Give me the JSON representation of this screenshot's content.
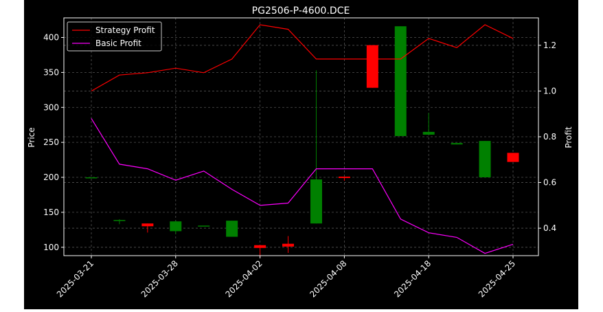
{
  "chart_data": {
    "type": "candlestick+line",
    "title": "PG2506-P-4600.DCE",
    "xlabel": "",
    "ylabel_left": "Price",
    "ylabel_right": "Profit",
    "ylim_left": [
      88,
      428
    ],
    "ylim_right": [
      0.28,
      1.32
    ],
    "yticks_left": [
      "100",
      "150",
      "200",
      "250",
      "300",
      "350",
      "400"
    ],
    "yticks_right": [
      "0.4",
      "0.6",
      "0.8",
      "1.0",
      "1.2"
    ],
    "xticks": [
      "2025-03-21",
      "2025-03-28",
      "2025-04-02",
      "2025-04-08",
      "2025-04-18",
      "2025-04-25"
    ],
    "grid": true,
    "legend_position": "upper-left",
    "colors": {
      "background": "#000000",
      "up": "#008000",
      "down": "#ff0000",
      "strategy": "#ff0000",
      "basic": "#ff00ff",
      "grid": "#555555",
      "axis": "#ffffff"
    },
    "candles": [
      {
        "open": 200,
        "close": 200,
        "high": 200,
        "low": 200
      },
      {
        "open": 138,
        "close": 139,
        "high": 140,
        "low": 133
      },
      {
        "open": 134,
        "close": 130,
        "high": 134,
        "low": 121
      },
      {
        "open": 123,
        "close": 137,
        "high": 138,
        "low": 119
      },
      {
        "open": 131,
        "close": 131,
        "high": 131,
        "low": 131
      },
      {
        "open": 115,
        "close": 138,
        "high": 138,
        "low": 115
      },
      {
        "open": 103,
        "close": 99,
        "high": 103,
        "low": 85
      },
      {
        "open": 105,
        "close": 101,
        "high": 116,
        "low": 92
      },
      {
        "open": 134,
        "close": 197,
        "high": 353,
        "low": 134
      },
      {
        "open": 201,
        "close": 199,
        "high": 201,
        "low": 195
      },
      {
        "open": 389,
        "close": 328,
        "high": 389,
        "low": 328
      },
      {
        "open": 259,
        "close": 416,
        "high": 416,
        "low": 259
      },
      {
        "open": 261,
        "close": 265,
        "high": 292,
        "low": 261
      },
      {
        "open": 247,
        "close": 249,
        "high": 249,
        "low": 247
      },
      {
        "open": 200,
        "close": 252,
        "high": 252,
        "low": 200
      },
      {
        "open": 235,
        "close": 222,
        "high": 235,
        "low": 222
      }
    ],
    "series": [
      {
        "name": "Strategy Profit",
        "axis": "right",
        "values": [
          1.0,
          1.07,
          1.08,
          1.1,
          1.08,
          1.14,
          1.29,
          1.27,
          1.14,
          1.14,
          1.14,
          1.14,
          1.23,
          1.19,
          1.29,
          1.23
        ]
      },
      {
        "name": "Basic Profit",
        "axis": "right",
        "values": [
          0.88,
          0.68,
          0.66,
          0.61,
          0.65,
          0.57,
          0.5,
          0.51,
          0.66,
          0.66,
          0.66,
          0.44,
          0.38,
          0.36,
          0.29,
          0.33
        ]
      }
    ]
  }
}
